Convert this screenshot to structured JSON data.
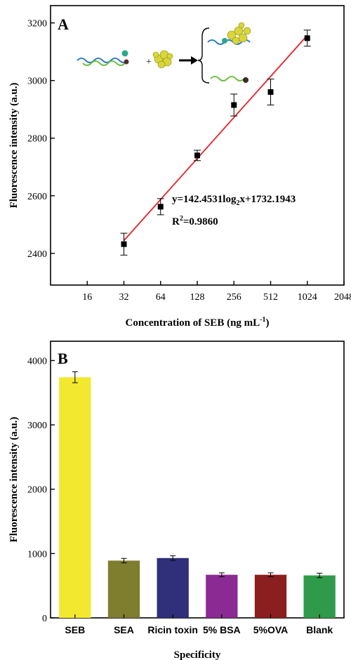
{
  "chart_data": [
    {
      "panel": "A",
      "type": "scatter",
      "xlabel": "Concentration of SEB (ng mL",
      "xlabel_sup": "-1",
      "xlabel_end": ")",
      "ylabel": "Fluorescence intensity (a.u.)",
      "x_scale": "log2",
      "xlim": [
        8,
        2048
      ],
      "ylim": [
        2290,
        3260
      ],
      "x_ticks": [
        16,
        32,
        64,
        128,
        256,
        512,
        1024,
        2048
      ],
      "y_ticks": [
        2400,
        2600,
        2800,
        3000,
        3200
      ],
      "points": [
        {
          "x": 32,
          "y": 2432,
          "err": 38
        },
        {
          "x": 64,
          "y": 2562,
          "err": 28
        },
        {
          "x": 128,
          "y": 2740,
          "err": 18
        },
        {
          "x": 256,
          "y": 2915,
          "err": 38
        },
        {
          "x": 512,
          "y": 2960,
          "err": 45
        },
        {
          "x": 1024,
          "y": 3147,
          "err": 28
        }
      ],
      "fit": {
        "slope": 142.4531,
        "intercept": 1732.1943,
        "color": "#e8202a"
      },
      "equation_prefix": "y=142.4531log",
      "equation_sub": "2",
      "equation_suffix": "x+1732.1943",
      "r2_prefix": "R",
      "r2_sup": "2",
      "r2_suffix": "=0.9860",
      "grid": false
    },
    {
      "panel": "B",
      "type": "bar",
      "xlabel": "Specificity",
      "ylabel": "Fluorescence intensity (a.u.)",
      "ylim": [
        0,
        4300
      ],
      "y_ticks": [
        0,
        1000,
        2000,
        3000,
        4000
      ],
      "categories": [
        "SEB",
        "SEA",
        "Ricin toxin",
        "5% BSA",
        "5%OVA",
        "Blank"
      ],
      "values": [
        3740,
        890,
        930,
        670,
        670,
        660
      ],
      "errors": [
        85,
        35,
        35,
        30,
        30,
        35
      ],
      "colors": [
        "#f2e830",
        "#7f7d2e",
        "#2f2f7a",
        "#8b2a92",
        "#8b1e1e",
        "#2f9b4a"
      ],
      "grid": false
    }
  ]
}
